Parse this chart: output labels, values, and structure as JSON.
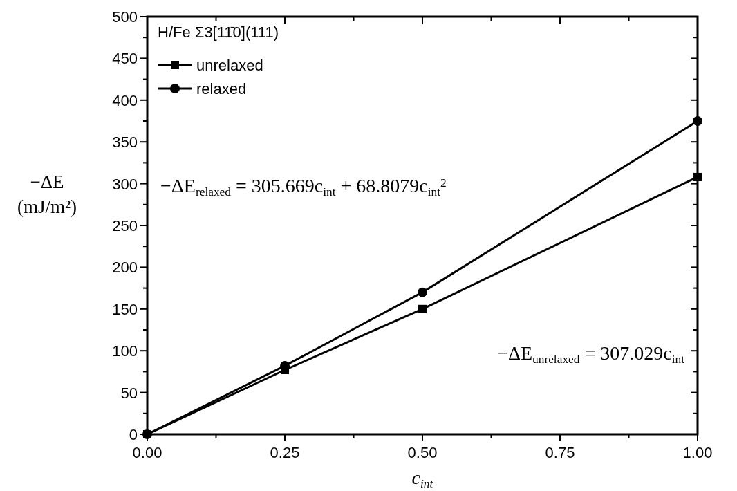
{
  "chart_data": {
    "type": "line",
    "legend_title": "H/Fe Σ3[11̄0](111)",
    "xlabel": "c$_{int}$",
    "ylabel": "−ΔE (mJ/m²)",
    "x": [
      0,
      0.25,
      0.5,
      1
    ],
    "series": [
      {
        "name": "unrelaxed",
        "color": "#000000",
        "marker": "square",
        "values": [
          0,
          77,
          150,
          308
        ]
      },
      {
        "name": "relaxed",
        "color": "#000000",
        "marker": "circle",
        "values": [
          0,
          82,
          170,
          375
        ]
      }
    ],
    "xlim": [
      0,
      1
    ],
    "xticks": [
      {
        "value": 0,
        "label": "0.00"
      },
      {
        "value": 0.25,
        "label": "0.25"
      },
      {
        "value": 0.5,
        "label": "0.50"
      },
      {
        "value": 0.75,
        "label": "0.75"
      },
      {
        "value": 1,
        "label": "1.00"
      }
    ],
    "ylim": [
      0,
      500
    ],
    "yticks": [
      0,
      50,
      100,
      150,
      200,
      250,
      300,
      350,
      400,
      450,
      500
    ],
    "annotations": [
      "−ΔE$_{relaxed}$ = 305.669c$_{int}$ + 68.8079c$_{int}$$^{2}$",
      "−ΔE$_{unrelaxed}$ = 307.029c$_{int}$"
    ],
    "legend": "top left",
    "grid": false,
    "line_style": "solid"
  }
}
